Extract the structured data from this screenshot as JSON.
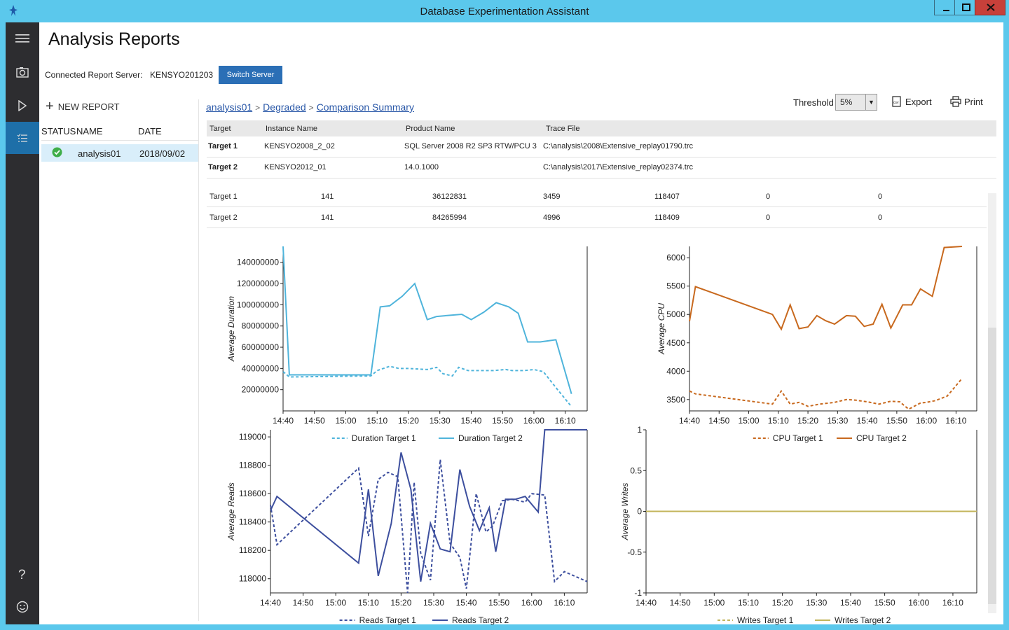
{
  "window": {
    "title": "Database Experimentation Assistant",
    "accent": "#5bc8ec"
  },
  "nav": {
    "items": [
      {
        "icon": "hamburger-menu-icon"
      },
      {
        "icon": "camera-icon"
      },
      {
        "icon": "play-icon"
      },
      {
        "icon": "checklist-icon",
        "active": true
      }
    ],
    "bottom": [
      {
        "icon": "help-icon"
      },
      {
        "icon": "feedback-smiley-icon"
      }
    ]
  },
  "header": {
    "title": "Analysis Reports",
    "server_label": "Connected Report Server:",
    "server_name": "KENSYO201203",
    "switch_button": "Switch Server"
  },
  "reports": {
    "new_report_label": "NEW REPORT",
    "columns": {
      "status": "STATUS",
      "name": "NAME",
      "date": "DATE"
    },
    "rows": [
      {
        "status": "success",
        "name": "analysis01",
        "date": "2018/09/02"
      }
    ]
  },
  "breadcrumb": {
    "items": [
      "analysis01",
      "Degraded",
      "Comparison Summary"
    ],
    "separator": ">"
  },
  "toolbar": {
    "threshold_label": "Threshold",
    "threshold_value": "5%",
    "export_label": "Export",
    "print_label": "Print"
  },
  "targets": {
    "headers": [
      "Target",
      "Instance Name",
      "Product Name",
      "Trace File"
    ],
    "rows": [
      {
        "target": "Target 1",
        "instance": "KENSYO2008_2_02",
        "product": "SQL Server 2008 R2 SP3 RTW/PCU 3",
        "trace": "C:\\analysis\\2008\\Extensive_replay01790.trc"
      },
      {
        "target": "Target 2",
        "instance": "KENSYO2012_01",
        "product": "14.0.1000",
        "trace": "C:\\analysis\\2017\\Extensive_replay02374.trc"
      }
    ]
  },
  "metrics": {
    "rows": [
      {
        "target": "Target 1",
        "values": [
          "141",
          "36122831",
          "3459",
          "118407",
          "0",
          "0"
        ]
      },
      {
        "target": "Target 2",
        "values": [
          "141",
          "84265994",
          "4996",
          "118409",
          "0",
          "0"
        ]
      }
    ]
  },
  "chart_data": [
    {
      "type": "line",
      "ylabel": "Average Duration",
      "ylim": [
        0,
        155000000
      ],
      "yticks": [
        20000000,
        40000000,
        60000000,
        80000000,
        100000000,
        120000000,
        140000000
      ],
      "xticks": [
        "14:40",
        "14:50",
        "15:00",
        "15:10",
        "15:20",
        "15:30",
        "15:40",
        "15:50",
        "16:00",
        "16:10"
      ],
      "xlim": [
        0,
        97
      ],
      "legend_position": "bottom",
      "series": [
        {
          "name": "Duration Target 1",
          "style": "dashed",
          "color": "#4fb4db",
          "x": [
            0,
            2,
            28,
            30,
            34,
            37,
            40,
            46,
            49,
            51,
            54,
            56,
            59,
            63,
            67,
            71,
            73,
            77,
            80,
            83,
            87,
            92
          ],
          "y": [
            37000000,
            32000000,
            33000000,
            38000000,
            42000000,
            40000000,
            40000000,
            39000000,
            41000000,
            35000000,
            33000000,
            41000000,
            38000000,
            38000000,
            38000000,
            39000000,
            38000000,
            38000000,
            39000000,
            37000000,
            22000000,
            4000000
          ]
        },
        {
          "name": "Duration Target 2",
          "style": "solid",
          "color": "#4fb4db",
          "x": [
            0,
            2,
            28,
            31,
            34,
            38,
            42,
            46,
            49,
            53,
            57,
            60,
            64,
            68,
            72,
            75,
            78,
            82,
            87,
            92
          ],
          "y": [
            155000000,
            34000000,
            34000000,
            98000000,
            99000000,
            108000000,
            120000000,
            86000000,
            89000000,
            90000000,
            91000000,
            86000000,
            93000000,
            102000000,
            98000000,
            92000000,
            65000000,
            65000000,
            67000000,
            16000000
          ]
        }
      ]
    },
    {
      "type": "line",
      "ylabel": "Average CPU",
      "ylim": [
        3300,
        6200
      ],
      "yticks": [
        3500,
        4000,
        4500,
        5000,
        5500,
        6000
      ],
      "xticks": [
        "14:40",
        "14:50",
        "15:00",
        "15:10",
        "15:20",
        "15:30",
        "15:40",
        "15:50",
        "16:00",
        "16:10"
      ],
      "xlim": [
        0,
        97
      ],
      "legend_position": "bottom",
      "series": [
        {
          "name": "CPU Target 1",
          "style": "dashed",
          "color": "#c8691e",
          "x": [
            0,
            2,
            28,
            31,
            34,
            37,
            40,
            44,
            49,
            53,
            56,
            60,
            64,
            68,
            71,
            74,
            78,
            80,
            83,
            87,
            92
          ],
          "y": [
            3650,
            3600,
            3420,
            3650,
            3420,
            3450,
            3380,
            3420,
            3450,
            3500,
            3490,
            3460,
            3420,
            3470,
            3460,
            3330,
            3440,
            3450,
            3480,
            3560,
            3870
          ]
        },
        {
          "name": "CPU Target 2",
          "style": "solid",
          "color": "#c8691e",
          "x": [
            0,
            2,
            28,
            31,
            34,
            37,
            40,
            43,
            46,
            49,
            53,
            56,
            59,
            62,
            65,
            68,
            72,
            75,
            78,
            82,
            86,
            92
          ],
          "y": [
            4880,
            5490,
            5000,
            4740,
            5170,
            4750,
            4780,
            4980,
            4890,
            4830,
            4980,
            4970,
            4790,
            4830,
            5180,
            4760,
            5170,
            5170,
            5450,
            5320,
            6180,
            6200
          ]
        }
      ]
    },
    {
      "type": "line",
      "ylabel": "Average Reads",
      "ylim": [
        117900,
        119050
      ],
      "yticks": [
        118000,
        118200,
        118400,
        118600,
        118800,
        119000
      ],
      "xticks": [
        "14:40",
        "14:50",
        "15:00",
        "15:10",
        "15:20",
        "15:30",
        "15:40",
        "15:50",
        "16:00",
        "16:10"
      ],
      "xlim": [
        0,
        97
      ],
      "legend_position": "bottom",
      "series": [
        {
          "name": "Reads Target 1",
          "style": "dashed",
          "color": "#3d4f9e",
          "x": [
            0,
            2,
            27,
            30,
            33,
            36,
            39,
            42,
            44,
            46,
            49,
            52,
            55,
            58,
            60,
            63,
            66,
            68,
            71,
            74,
            78,
            80,
            84,
            87,
            90,
            97
          ],
          "y": [
            118520,
            118240,
            118780,
            118300,
            118700,
            118750,
            118720,
            117900,
            118680,
            118180,
            117990,
            118840,
            118250,
            118150,
            117930,
            118600,
            118330,
            118370,
            118550,
            118560,
            118540,
            118600,
            118590,
            117980,
            118050,
            117980
          ]
        },
        {
          "name": "Reads Target 2",
          "style": "solid",
          "color": "#3d4f9e",
          "x": [
            0,
            2,
            27,
            30,
            33,
            37,
            40,
            43,
            46,
            49,
            52,
            55,
            58,
            61,
            64,
            67,
            69,
            72,
            75,
            78,
            82,
            84,
            87,
            90,
            97
          ],
          "y": [
            118480,
            118580,
            118110,
            118630,
            118020,
            118390,
            118890,
            118630,
            117980,
            118390,
            118210,
            118190,
            118770,
            118510,
            118340,
            118500,
            118190,
            118560,
            118560,
            118580,
            118470,
            119050,
            119050,
            119050,
            119050
          ]
        }
      ]
    },
    {
      "type": "line",
      "ylabel": "Average Writes",
      "ylim": [
        -1,
        1
      ],
      "yticks": [
        -1,
        -0.5,
        0,
        0.5,
        1
      ],
      "xticks": [
        "14:40",
        "14:50",
        "15:00",
        "15:10",
        "15:20",
        "15:30",
        "15:40",
        "15:50",
        "16:00",
        "16:10"
      ],
      "xlim": [
        0,
        97
      ],
      "legend_position": "bottom",
      "series": [
        {
          "name": "Writes Target 1",
          "style": "dashed",
          "color": "#c3b45a",
          "x": [
            0,
            97
          ],
          "y": [
            0,
            0
          ]
        },
        {
          "name": "Writes Target 2",
          "style": "solid",
          "color": "#c3b45a",
          "x": [
            0,
            97
          ],
          "y": [
            0,
            0
          ]
        }
      ]
    }
  ]
}
